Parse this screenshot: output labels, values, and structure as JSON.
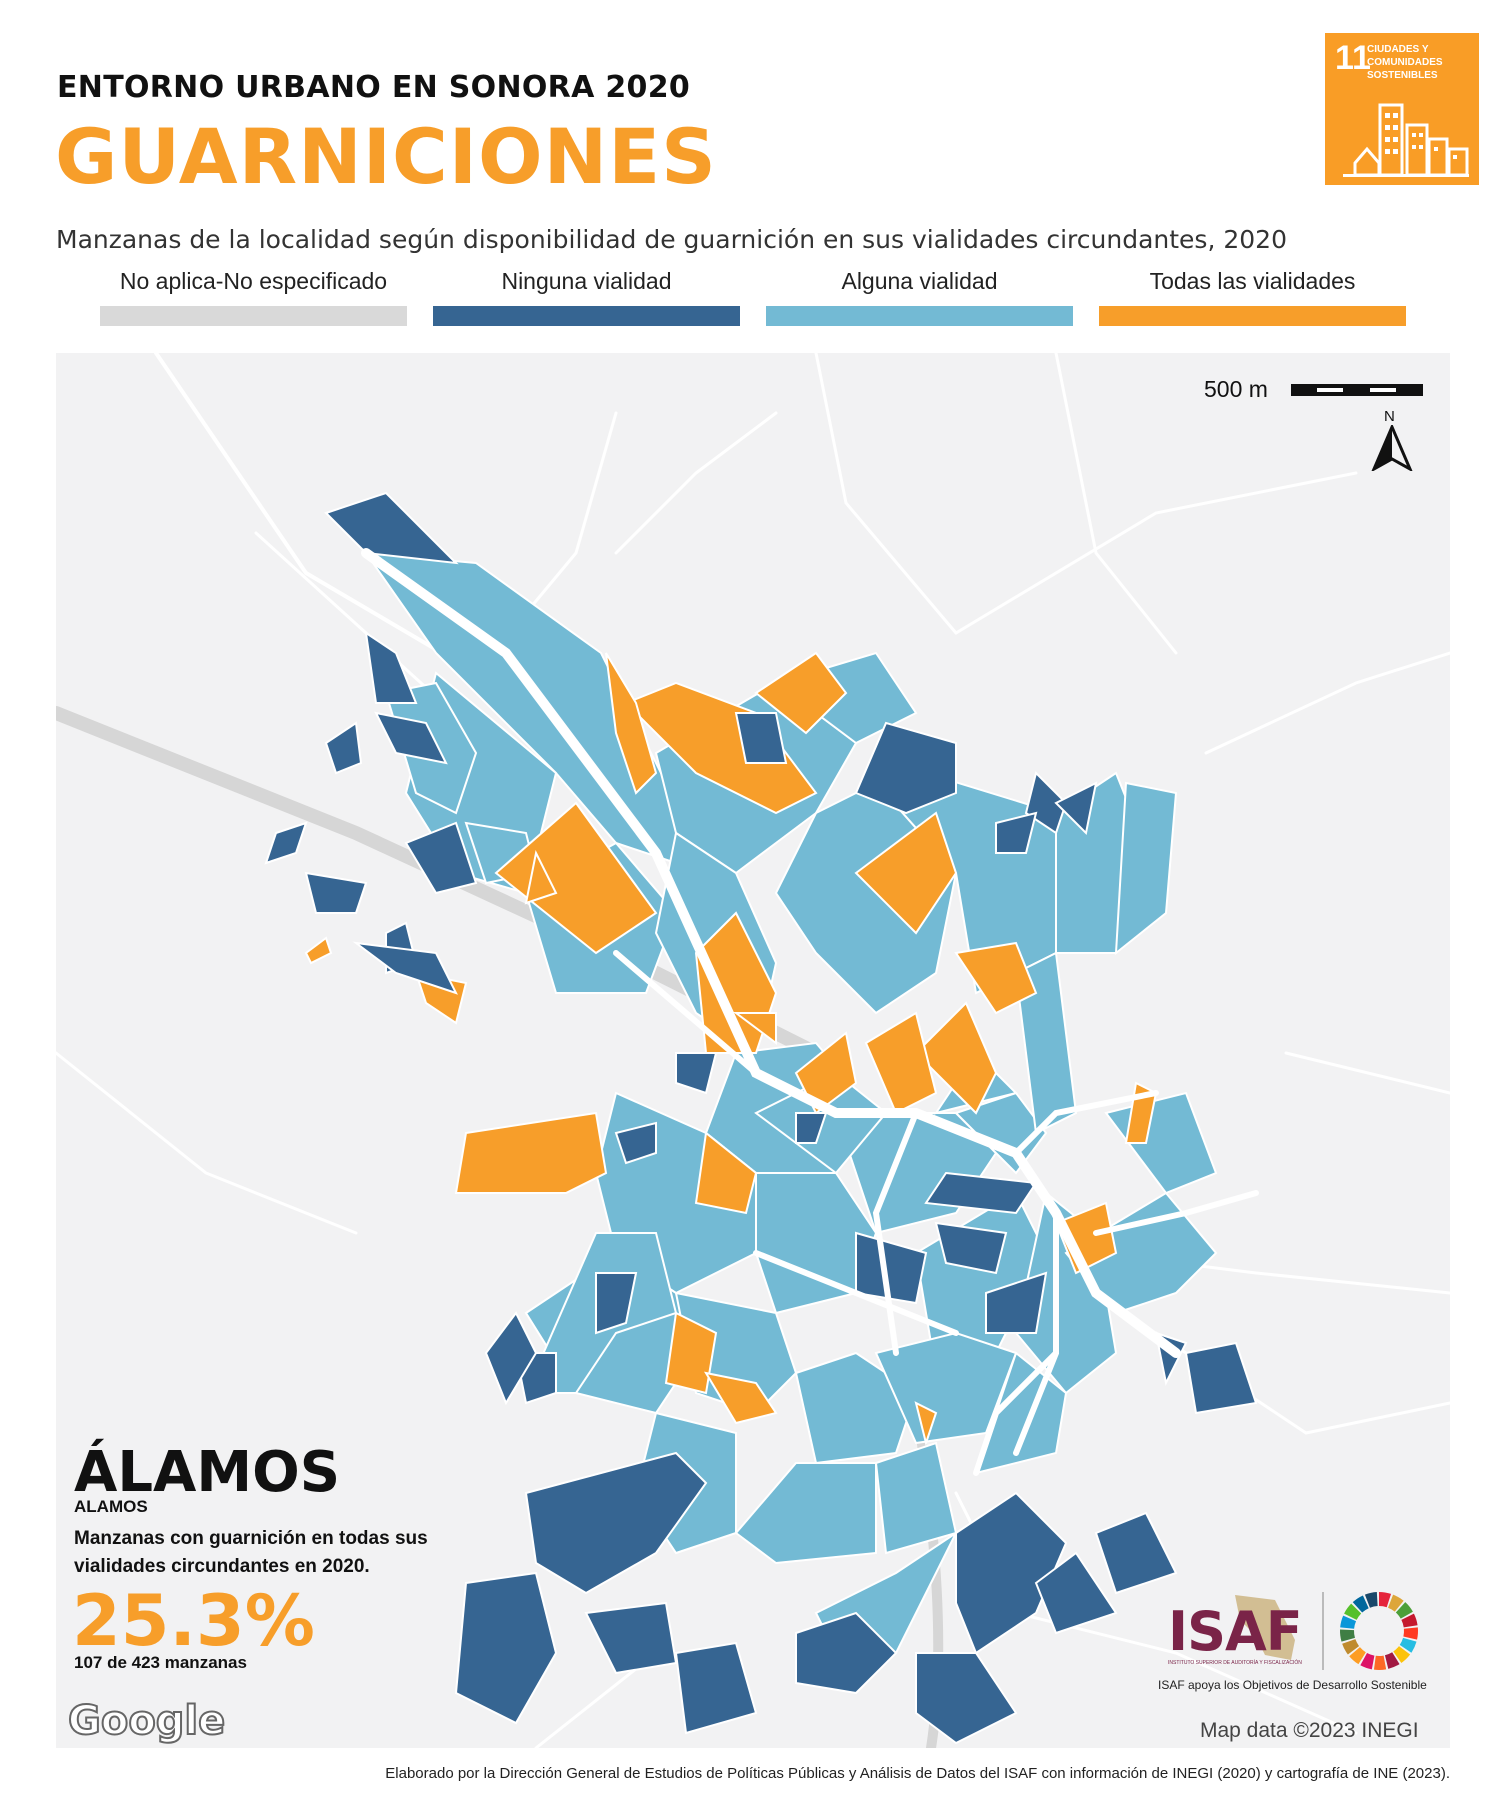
{
  "header": {
    "supertitle": "ENTORNO URBANO EN SONORA 2020",
    "title": "GUARNICIONES",
    "subtitle": "Manzanas de la localidad según disponibilidad de guarnición en sus vialidades circundantes, 2020"
  },
  "sdg_badge": {
    "number": "11",
    "text": "CIUDADES Y COMUNIDADES SOSTENIBLES",
    "color": "#F99D26"
  },
  "legend": [
    {
      "label": "No aplica-No especificado",
      "color": "#d9d9d9"
    },
    {
      "label": "Ninguna vialidad",
      "color": "#366592"
    },
    {
      "label": "Alguna vialidad",
      "color": "#73BAD4"
    },
    {
      "label": "Todas las vialidades",
      "color": "#F79E2A"
    }
  ],
  "map": {
    "scale_label": "500 m",
    "north_label": "N",
    "attribution": "Map data ©2023 INEGI",
    "google_label": "Google"
  },
  "locality": {
    "name": "ÁLAMOS",
    "subname": "ALAMOS",
    "stat_description": "Manzanas con guarnición en todas sus vialidades circundantes en 2020.",
    "stat_value": "25.3%",
    "stat_count": "107 de 423 manzanas"
  },
  "logos": {
    "isaf": "ISAF",
    "isaf_sub": "INSTITUTO SUPERIOR DE AUDITORÍA Y FISCALIZACIÓN",
    "isaf_tagline": "ISAF apoya los Objetivos de Desarrollo Sostenible"
  },
  "footer": "Elaborado por la Dirección General de Estudios de Políticas Públicas y Análisis de Datos del ISAF con información de INEGI (2020) y cartografía de INE (2023)."
}
